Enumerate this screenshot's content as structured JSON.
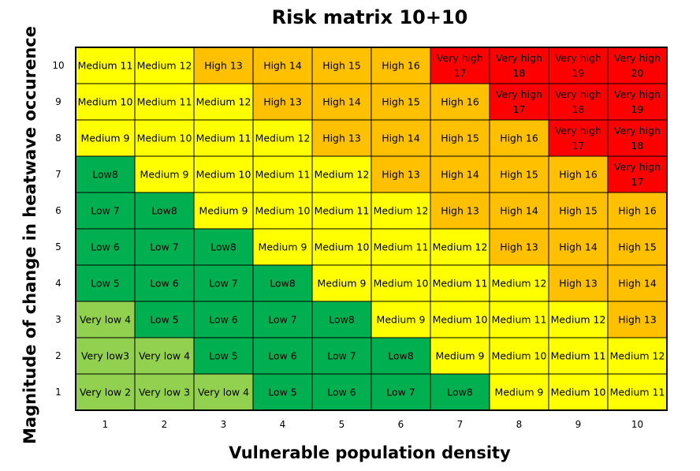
{
  "chart_data": {
    "type": "heatmap",
    "title": "Risk matrix 10+10",
    "xlabel": "Vulnerable population density",
    "ylabel": "Magnitude of change in heatwave occurence",
    "x": [
      "1",
      "2",
      "3",
      "4",
      "5",
      "6",
      "7",
      "8",
      "9",
      "10"
    ],
    "y": [
      "1",
      "2",
      "3",
      "4",
      "5",
      "6",
      "7",
      "8",
      "9",
      "10"
    ],
    "grid": true,
    "colors": {
      "very_low": "#92d050",
      "low": "#00b050",
      "medium": "#ffff00",
      "high": "#ffc000",
      "very_high": "#ff0000",
      "border": "#000000"
    },
    "rows": [
      {
        "y": "10",
        "cells": [
          {
            "label": "Medium 11",
            "level": "medium"
          },
          {
            "label": "Medium 12",
            "level": "medium"
          },
          {
            "label": "High 13",
            "level": "high"
          },
          {
            "label": "High 14",
            "level": "high"
          },
          {
            "label": "High 15",
            "level": "high"
          },
          {
            "label": "High 16",
            "level": "high"
          },
          {
            "label": "Very high 17",
            "level": "very_high"
          },
          {
            "label": "Very high 18",
            "level": "very_high"
          },
          {
            "label": "Very high 19",
            "level": "very_high"
          },
          {
            "label": "Very high 20",
            "level": "very_high"
          }
        ]
      },
      {
        "y": "9",
        "cells": [
          {
            "label": "Medium 10",
            "level": "medium"
          },
          {
            "label": "Medium 11",
            "level": "medium"
          },
          {
            "label": "Medium 12",
            "level": "medium"
          },
          {
            "label": "High 13",
            "level": "high"
          },
          {
            "label": "High 14",
            "level": "high"
          },
          {
            "label": "High 15",
            "level": "high"
          },
          {
            "label": "High 16",
            "level": "high"
          },
          {
            "label": "Very high 17",
            "level": "very_high"
          },
          {
            "label": "Very high 18",
            "level": "very_high"
          },
          {
            "label": "Very high 19",
            "level": "very_high"
          }
        ]
      },
      {
        "y": "8",
        "cells": [
          {
            "label": "Medium 9",
            "level": "medium"
          },
          {
            "label": "Medium 10",
            "level": "medium"
          },
          {
            "label": "Medium 11",
            "level": "medium"
          },
          {
            "label": "Medium 12",
            "level": "medium"
          },
          {
            "label": "High 13",
            "level": "high"
          },
          {
            "label": "High 14",
            "level": "high"
          },
          {
            "label": "High 15",
            "level": "high"
          },
          {
            "label": "High 16",
            "level": "high"
          },
          {
            "label": "Very high 17",
            "level": "very_high"
          },
          {
            "label": "Very high 18",
            "level": "very_high"
          }
        ]
      },
      {
        "y": "7",
        "cells": [
          {
            "label": "Low8",
            "level": "low"
          },
          {
            "label": "Medium 9",
            "level": "medium"
          },
          {
            "label": "Medium 10",
            "level": "medium"
          },
          {
            "label": "Medium 11",
            "level": "medium"
          },
          {
            "label": "Medium 12",
            "level": "medium"
          },
          {
            "label": "High 13",
            "level": "high"
          },
          {
            "label": "High 14",
            "level": "high"
          },
          {
            "label": "High 15",
            "level": "high"
          },
          {
            "label": "High 16",
            "level": "high"
          },
          {
            "label": "Very high 17",
            "level": "very_high"
          }
        ]
      },
      {
        "y": "6",
        "cells": [
          {
            "label": "Low 7",
            "level": "low"
          },
          {
            "label": "Low8",
            "level": "low"
          },
          {
            "label": "Medium 9",
            "level": "medium"
          },
          {
            "label": "Medium 10",
            "level": "medium"
          },
          {
            "label": "Medium 11",
            "level": "medium"
          },
          {
            "label": "Medium 12",
            "level": "medium"
          },
          {
            "label": "High 13",
            "level": "high"
          },
          {
            "label": "High 14",
            "level": "high"
          },
          {
            "label": "High 15",
            "level": "high"
          },
          {
            "label": "High 16",
            "level": "high"
          }
        ]
      },
      {
        "y": "5",
        "cells": [
          {
            "label": "Low 6",
            "level": "low"
          },
          {
            "label": "Low 7",
            "level": "low"
          },
          {
            "label": "Low8",
            "level": "low"
          },
          {
            "label": "Medium 9",
            "level": "medium"
          },
          {
            "label": "Medium 10",
            "level": "medium"
          },
          {
            "label": "Medium 11",
            "level": "medium"
          },
          {
            "label": "Medium 12",
            "level": "medium"
          },
          {
            "label": "High 13",
            "level": "high"
          },
          {
            "label": "High 14",
            "level": "high"
          },
          {
            "label": "High 15",
            "level": "high"
          }
        ]
      },
      {
        "y": "4",
        "cells": [
          {
            "label": "Low 5",
            "level": "low"
          },
          {
            "label": "Low 6",
            "level": "low"
          },
          {
            "label": "Low 7",
            "level": "low"
          },
          {
            "label": "Low8",
            "level": "low"
          },
          {
            "label": "Medium 9",
            "level": "medium"
          },
          {
            "label": "Medium 10",
            "level": "medium"
          },
          {
            "label": "Medium 11",
            "level": "medium"
          },
          {
            "label": "Medium 12",
            "level": "medium"
          },
          {
            "label": "High 13",
            "level": "high"
          },
          {
            "label": "High 14",
            "level": "high"
          }
        ]
      },
      {
        "y": "3",
        "cells": [
          {
            "label": "Very low 4",
            "level": "very_low"
          },
          {
            "label": "Low 5",
            "level": "low"
          },
          {
            "label": "Low 6",
            "level": "low"
          },
          {
            "label": "Low 7",
            "level": "low"
          },
          {
            "label": "Low8",
            "level": "low"
          },
          {
            "label": "Medium 9",
            "level": "medium"
          },
          {
            "label": "Medium 10",
            "level": "medium"
          },
          {
            "label": "Medium 11",
            "level": "medium"
          },
          {
            "label": "Medium 12",
            "level": "medium"
          },
          {
            "label": "High 13",
            "level": "high"
          }
        ]
      },
      {
        "y": "2",
        "cells": [
          {
            "label": "Very low3",
            "level": "very_low"
          },
          {
            "label": "Very low 4",
            "level": "very_low"
          },
          {
            "label": "Low 5",
            "level": "low"
          },
          {
            "label": "Low 6",
            "level": "low"
          },
          {
            "label": "Low 7",
            "level": "low"
          },
          {
            "label": "Low8",
            "level": "low"
          },
          {
            "label": "Medium 9",
            "level": "medium"
          },
          {
            "label": "Medium 10",
            "level": "medium"
          },
          {
            "label": "Medium 11",
            "level": "medium"
          },
          {
            "label": "Medium 12",
            "level": "medium"
          }
        ]
      },
      {
        "y": "1",
        "cells": [
          {
            "label": "Very low 2",
            "level": "very_low"
          },
          {
            "label": "Very low 3",
            "level": "very_low"
          },
          {
            "label": "Very low 4",
            "level": "very_low"
          },
          {
            "label": "Low 5",
            "level": "low"
          },
          {
            "label": "Low 6",
            "level": "low"
          },
          {
            "label": "Low 7",
            "level": "low"
          },
          {
            "label": "Low8",
            "level": "low"
          },
          {
            "label": "Medium 9",
            "level": "medium"
          },
          {
            "label": "Medium 10",
            "level": "medium"
          },
          {
            "label": "Medium 11",
            "level": "medium"
          }
        ]
      }
    ]
  }
}
